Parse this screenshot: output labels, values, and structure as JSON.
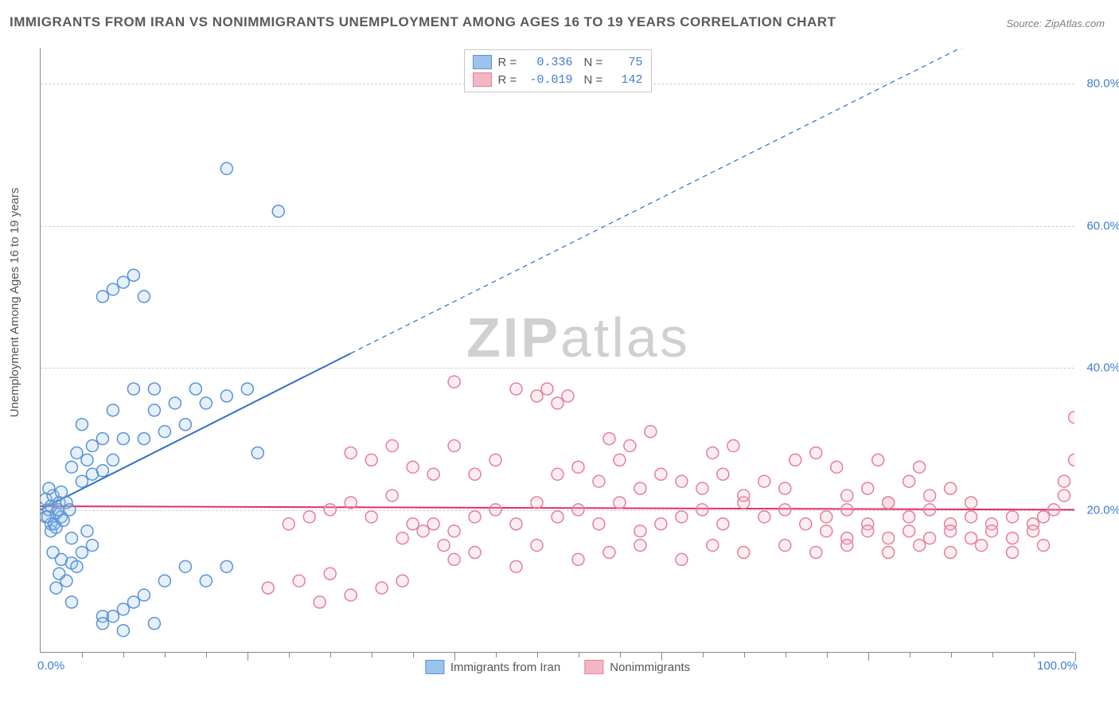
{
  "title": "IMMIGRANTS FROM IRAN VS NONIMMIGRANTS UNEMPLOYMENT AMONG AGES 16 TO 19 YEARS CORRELATION CHART",
  "source": "Source: ZipAtlas.com",
  "ylabel": "Unemployment Among Ages 16 to 19 years",
  "watermark_a": "ZIP",
  "watermark_b": "atlas",
  "chart": {
    "type": "scatter",
    "xlim": [
      0,
      100
    ],
    "ylim": [
      0,
      85
    ],
    "x_ticks_minor": [
      4,
      8,
      12,
      16,
      20,
      24,
      28,
      32,
      36,
      40,
      44,
      48,
      52,
      56,
      60,
      64,
      68,
      72,
      76,
      80,
      84,
      88,
      92,
      96,
      100
    ],
    "x_ticks_major": [
      20,
      40,
      60,
      80,
      100
    ],
    "x_tick_labels": {
      "0": "0.0%",
      "100": "100.0%"
    },
    "y_gridlines": [
      20,
      40,
      60,
      80
    ],
    "y_tick_labels": {
      "20": "20.0%",
      "40": "40.0%",
      "60": "60.0%",
      "80": "80.0%"
    },
    "background_color": "#ffffff",
    "grid_color": "#d0d0d0",
    "axis_color": "#888888",
    "marker_radius": 7.5,
    "series": [
      {
        "id": "immigrants",
        "label": "Immigrants from Iran",
        "fill": "#9cc3ec",
        "stroke": "#5a93d6",
        "R": "0.336",
        "N": "75",
        "trend": {
          "solid_from": [
            0,
            20
          ],
          "solid_to": [
            30,
            42
          ],
          "dashed_to": [
            100,
            93
          ],
          "color": "#2f6fc5",
          "width": 2
        },
        "points": [
          [
            0.5,
            19
          ],
          [
            0.8,
            20
          ],
          [
            1,
            18
          ],
          [
            1,
            17
          ],
          [
            0.5,
            21.5
          ],
          [
            1.2,
            22
          ],
          [
            0.8,
            23
          ],
          [
            1.5,
            19.5
          ],
          [
            1.3,
            18
          ],
          [
            0.7,
            19
          ],
          [
            1,
            20.5
          ],
          [
            1.8,
            21
          ],
          [
            2,
            19
          ],
          [
            1.5,
            17.5
          ],
          [
            2.2,
            18.5
          ],
          [
            1.7,
            20
          ],
          [
            2.5,
            21
          ],
          [
            2,
            22.5
          ],
          [
            2.8,
            20
          ],
          [
            1.2,
            14
          ],
          [
            2,
            13
          ],
          [
            3,
            12.5
          ],
          [
            1.8,
            11
          ],
          [
            2.5,
            10
          ],
          [
            1.5,
            9
          ],
          [
            3.5,
            12
          ],
          [
            4,
            14
          ],
          [
            3,
            16
          ],
          [
            4.5,
            17
          ],
          [
            5,
            15
          ],
          [
            3,
            7
          ],
          [
            6,
            5
          ],
          [
            8,
            6
          ],
          [
            10,
            8
          ],
          [
            12,
            10
          ],
          [
            14,
            12
          ],
          [
            16,
            10
          ],
          [
            18,
            12
          ],
          [
            7,
            5
          ],
          [
            9,
            7
          ],
          [
            4,
            24
          ],
          [
            5,
            25
          ],
          [
            3,
            26
          ],
          [
            6,
            25.5
          ],
          [
            4.5,
            27
          ],
          [
            7,
            27
          ],
          [
            3.5,
            28
          ],
          [
            5,
            29
          ],
          [
            8,
            30
          ],
          [
            6,
            30
          ],
          [
            4,
            32
          ],
          [
            7,
            34
          ],
          [
            10,
            30
          ],
          [
            12,
            31
          ],
          [
            14,
            32
          ],
          [
            11,
            34
          ],
          [
            13,
            35
          ],
          [
            16,
            35
          ],
          [
            18,
            36
          ],
          [
            15,
            37
          ],
          [
            11,
            37
          ],
          [
            9,
            37
          ],
          [
            6,
            50
          ],
          [
            7,
            51
          ],
          [
            8,
            52
          ],
          [
            10,
            50
          ],
          [
            9,
            53
          ],
          [
            23,
            62
          ],
          [
            18,
            68
          ],
          [
            6,
            4
          ],
          [
            11,
            4
          ],
          [
            8,
            3
          ],
          [
            20,
            37
          ],
          [
            21,
            28
          ]
        ]
      },
      {
        "id": "nonimmigrants",
        "label": "Nonimmigrants",
        "fill": "#f3b6c4",
        "stroke": "#e57f9a",
        "R": "-0.019",
        "N": "142",
        "trend": {
          "solid_from": [
            0,
            20.5
          ],
          "solid_to": [
            100,
            20
          ],
          "color": "#e22f6a",
          "width": 2
        },
        "points": [
          [
            22,
            9
          ],
          [
            25,
            10
          ],
          [
            28,
            11
          ],
          [
            24,
            18
          ],
          [
            26,
            19
          ],
          [
            28,
            20
          ],
          [
            30,
            21
          ],
          [
            32,
            19
          ],
          [
            34,
            22
          ],
          [
            36,
            18
          ],
          [
            27,
            7
          ],
          [
            30,
            8
          ],
          [
            33,
            9
          ],
          [
            35,
            10
          ],
          [
            30,
            28
          ],
          [
            32,
            27
          ],
          [
            34,
            29
          ],
          [
            36,
            26
          ],
          [
            38,
            25
          ],
          [
            40,
            29
          ],
          [
            42,
            25
          ],
          [
            44,
            27
          ],
          [
            40,
            38
          ],
          [
            46,
            37
          ],
          [
            48,
            36
          ],
          [
            50,
            35
          ],
          [
            38,
            18
          ],
          [
            40,
            17
          ],
          [
            42,
            19
          ],
          [
            44,
            20
          ],
          [
            46,
            18
          ],
          [
            48,
            21
          ],
          [
            50,
            19
          ],
          [
            52,
            20
          ],
          [
            54,
            18
          ],
          [
            56,
            21
          ],
          [
            50,
            25
          ],
          [
            52,
            26
          ],
          [
            54,
            24
          ],
          [
            56,
            27
          ],
          [
            58,
            23
          ],
          [
            60,
            25
          ],
          [
            55,
            30
          ],
          [
            57,
            29
          ],
          [
            59,
            31
          ],
          [
            49,
            37
          ],
          [
            51,
            36
          ],
          [
            58,
            17
          ],
          [
            60,
            18
          ],
          [
            62,
            19
          ],
          [
            64,
            20
          ],
          [
            66,
            18
          ],
          [
            68,
            21
          ],
          [
            70,
            19
          ],
          [
            72,
            20
          ],
          [
            74,
            18
          ],
          [
            62,
            24
          ],
          [
            64,
            23
          ],
          [
            66,
            25
          ],
          [
            68,
            22
          ],
          [
            70,
            24
          ],
          [
            72,
            23
          ],
          [
            65,
            28
          ],
          [
            67,
            29
          ],
          [
            75,
            28
          ],
          [
            76,
            19
          ],
          [
            78,
            20
          ],
          [
            80,
            18
          ],
          [
            82,
            21
          ],
          [
            84,
            19
          ],
          [
            86,
            20
          ],
          [
            88,
            18
          ],
          [
            90,
            19
          ],
          [
            92,
            18
          ],
          [
            94,
            19
          ],
          [
            96,
            18
          ],
          [
            97,
            19
          ],
          [
            98,
            20
          ],
          [
            99,
            22
          ],
          [
            99,
            24
          ],
          [
            100,
            27
          ],
          [
            100,
            33
          ],
          [
            76,
            17
          ],
          [
            78,
            16
          ],
          [
            80,
            17
          ],
          [
            82,
            16
          ],
          [
            84,
            17
          ],
          [
            86,
            16
          ],
          [
            88,
            17
          ],
          [
            90,
            16
          ],
          [
            92,
            17
          ],
          [
            94,
            16
          ],
          [
            96,
            17
          ],
          [
            78,
            22
          ],
          [
            80,
            23
          ],
          [
            82,
            21
          ],
          [
            84,
            24
          ],
          [
            86,
            22
          ],
          [
            88,
            23
          ],
          [
            90,
            21
          ],
          [
            73,
            27
          ],
          [
            77,
            26
          ],
          [
            81,
            27
          ],
          [
            85,
            26
          ],
          [
            40,
            13
          ],
          [
            42,
            14
          ],
          [
            46,
            12
          ],
          [
            48,
            15
          ],
          [
            52,
            13
          ],
          [
            55,
            14
          ],
          [
            58,
            15
          ],
          [
            62,
            13
          ],
          [
            65,
            15
          ],
          [
            68,
            14
          ],
          [
            72,
            15
          ],
          [
            75,
            14
          ],
          [
            78,
            15
          ],
          [
            82,
            14
          ],
          [
            85,
            15
          ],
          [
            88,
            14
          ],
          [
            91,
            15
          ],
          [
            94,
            14
          ],
          [
            97,
            15
          ],
          [
            35,
            16
          ],
          [
            37,
            17
          ],
          [
            39,
            15
          ]
        ]
      }
    ]
  },
  "colors": {
    "title": "#5a5a5a",
    "source": "#808080",
    "tick_label": "#3b7dd8",
    "axis_label": "#555555"
  }
}
